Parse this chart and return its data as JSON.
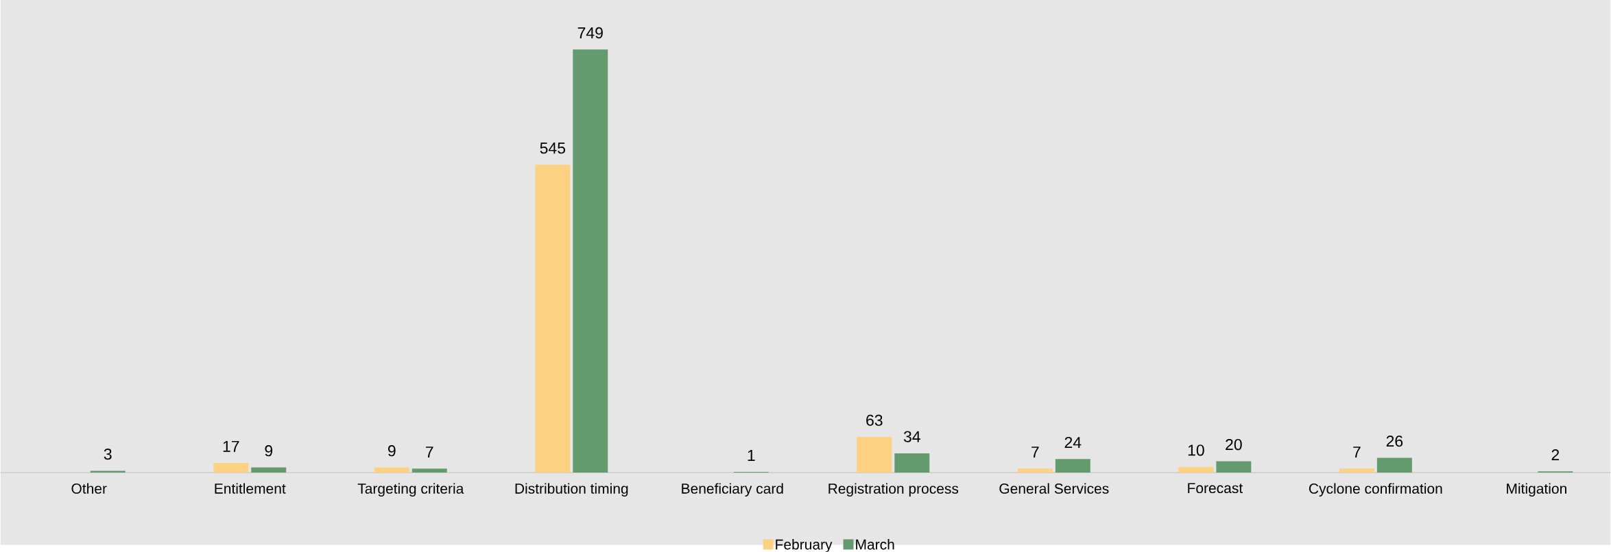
{
  "chart_data": {
    "type": "bar",
    "categories": [
      "Other",
      "Entitlement",
      "Targeting criteria",
      "Distribution timing",
      "Beneficiary card",
      "Registration process",
      "General Services",
      "Forecast",
      "Cyclone confirmation",
      "Mitigation"
    ],
    "series": [
      {
        "name": "February",
        "color": "#FDD182",
        "values": [
          null,
          17,
          9,
          545,
          null,
          63,
          7,
          10,
          7,
          null
        ]
      },
      {
        "name": "March",
        "color": "#639A6E",
        "values": [
          3,
          9,
          7,
          749,
          1,
          34,
          24,
          20,
          26,
          2
        ]
      }
    ],
    "data_labels": true,
    "legend": "bottom"
  }
}
